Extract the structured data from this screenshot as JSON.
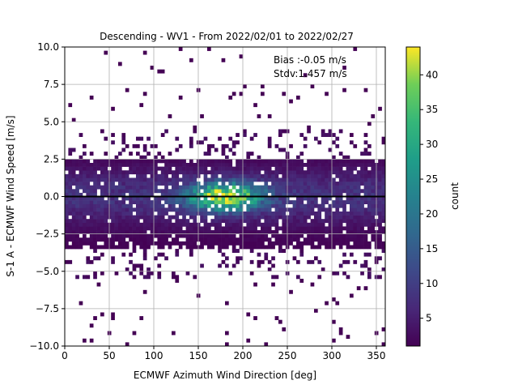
{
  "chart_data": {
    "type": "heatmap",
    "title": "Descending - WV1 - From 2022/02/01 to 2022/02/27",
    "xlabel": "ECMWF Azimuth Wind Direction [deg]",
    "ylabel": "S-1 A - ECMWF Wind Speed [m/s]",
    "xlim": [
      0,
      360
    ],
    "ylim": [
      -10,
      10
    ],
    "x_ticks": [
      0,
      50,
      100,
      150,
      200,
      250,
      300,
      350
    ],
    "y_ticks": [
      -10.0,
      -7.5,
      -5.0,
      -2.5,
      0.0,
      2.5,
      5.0,
      7.5,
      10.0
    ],
    "x_tick_labels": [
      "0",
      "50",
      "100",
      "150",
      "200",
      "250",
      "300",
      "350"
    ],
    "y_tick_labels": [
      "−10.0",
      "−7.5",
      "−5.0",
      "−2.5",
      "0.0",
      "2.5",
      "5.0",
      "7.5",
      "10.0"
    ],
    "grid": true,
    "zero_line": 0,
    "annotations": [
      "Bias :-0.05 m/s",
      "Stdv:1.457 m/s"
    ],
    "colorbar": {
      "label": "count",
      "colormap": "viridis",
      "range": [
        1,
        44
      ],
      "ticks": [
        5,
        10,
        15,
        20,
        25,
        30,
        35,
        40
      ],
      "tick_labels": [
        "5",
        "10",
        "15",
        "20",
        "25",
        "30",
        "35",
        "40"
      ]
    },
    "bins": {
      "x_bin_width_deg": 4,
      "y_bin_width_ms": 0.25,
      "counts_model": "peak 44 near direction 180 deg and speed 0 m/s; core spread about -3.5 to 2.5 m/s; sparse outliers to +/-9 m/s"
    }
  }
}
